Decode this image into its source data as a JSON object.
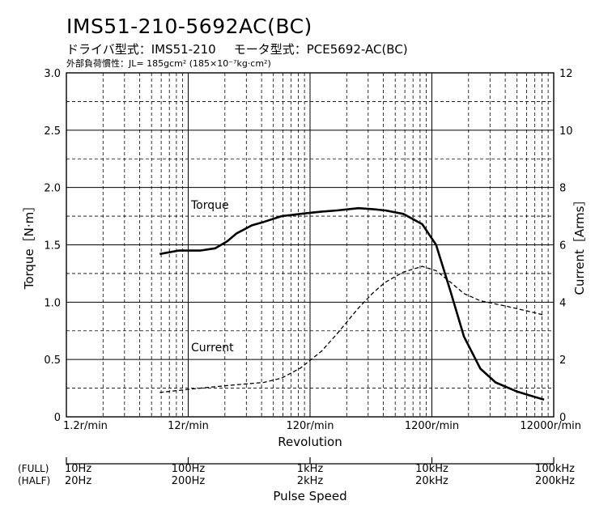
{
  "title": "IMS51-210-5692AC(BC)",
  "subtitle": {
    "driver": "ドライバ型式：IMS51-210",
    "motor": "モータ型式：PCE5692-AC(BC)"
  },
  "note": "外部負荷慣性：JL= 185gcm² (185×10⁻⁷kg·cm²)",
  "chart_data": {
    "type": "line",
    "x_scale": "log",
    "xlabel": "Revolution",
    "x_ticks_r_min": [
      1.2,
      12,
      120,
      1200,
      12000
    ],
    "x_tick_labels": [
      "1.2r/min",
      "12r/min",
      "120r/min",
      "1200r/min",
      "12000r/min"
    ],
    "xlim": [
      1.2,
      12000
    ],
    "ylabel_left": "Torque［N·m］",
    "ylim_left": [
      0,
      3.0
    ],
    "y_ticks_left": [
      "0",
      "0.5",
      "1.0",
      "1.5",
      "2.0",
      "2.5",
      "3.0"
    ],
    "ylabel_right": "Current［Arms］",
    "ylim_right": [
      0,
      12
    ],
    "y_ticks_right": [
      "0",
      "2",
      "4",
      "6",
      "8",
      "10",
      "12"
    ],
    "grid": true,
    "pulse_axis": {
      "label": "Pulse Speed",
      "full_label": "(FULL)",
      "half_label": "(HALF)",
      "full": [
        "10Hz",
        "100Hz",
        "1kHz",
        "10kHz",
        "100kHz"
      ],
      "half": [
        "20Hz",
        "200Hz",
        "2kHz",
        "20kHz",
        "200kHz"
      ]
    },
    "series": [
      {
        "name": "Torque",
        "axis": "left",
        "style": "solid",
        "x": [
          7,
          10,
          15,
          20,
          25,
          30,
          40,
          50,
          70,
          100,
          150,
          200,
          300,
          400,
          500,
          700,
          1000,
          1300,
          1700,
          2200,
          3000,
          4000,
          6000,
          8000,
          10000
        ],
        "y": [
          1.42,
          1.45,
          1.45,
          1.47,
          1.53,
          1.6,
          1.67,
          1.7,
          1.75,
          1.77,
          1.79,
          1.8,
          1.82,
          1.81,
          1.8,
          1.77,
          1.68,
          1.5,
          1.1,
          0.7,
          0.42,
          0.3,
          0.22,
          0.18,
          0.15
        ]
      },
      {
        "name": "Current",
        "axis": "right",
        "style": "dashed",
        "x": [
          7,
          10,
          15,
          20,
          30,
          50,
          70,
          100,
          150,
          200,
          300,
          400,
          500,
          700,
          1000,
          1300,
          1700,
          2200,
          3000,
          5000,
          8000,
          10000
        ],
        "y": [
          0.85,
          0.92,
          1.0,
          1.05,
          1.12,
          1.2,
          1.35,
          1.7,
          2.3,
          2.9,
          3.8,
          4.35,
          4.7,
          5.05,
          5.25,
          5.1,
          4.7,
          4.3,
          4.05,
          3.85,
          3.65,
          3.55
        ]
      }
    ]
  }
}
